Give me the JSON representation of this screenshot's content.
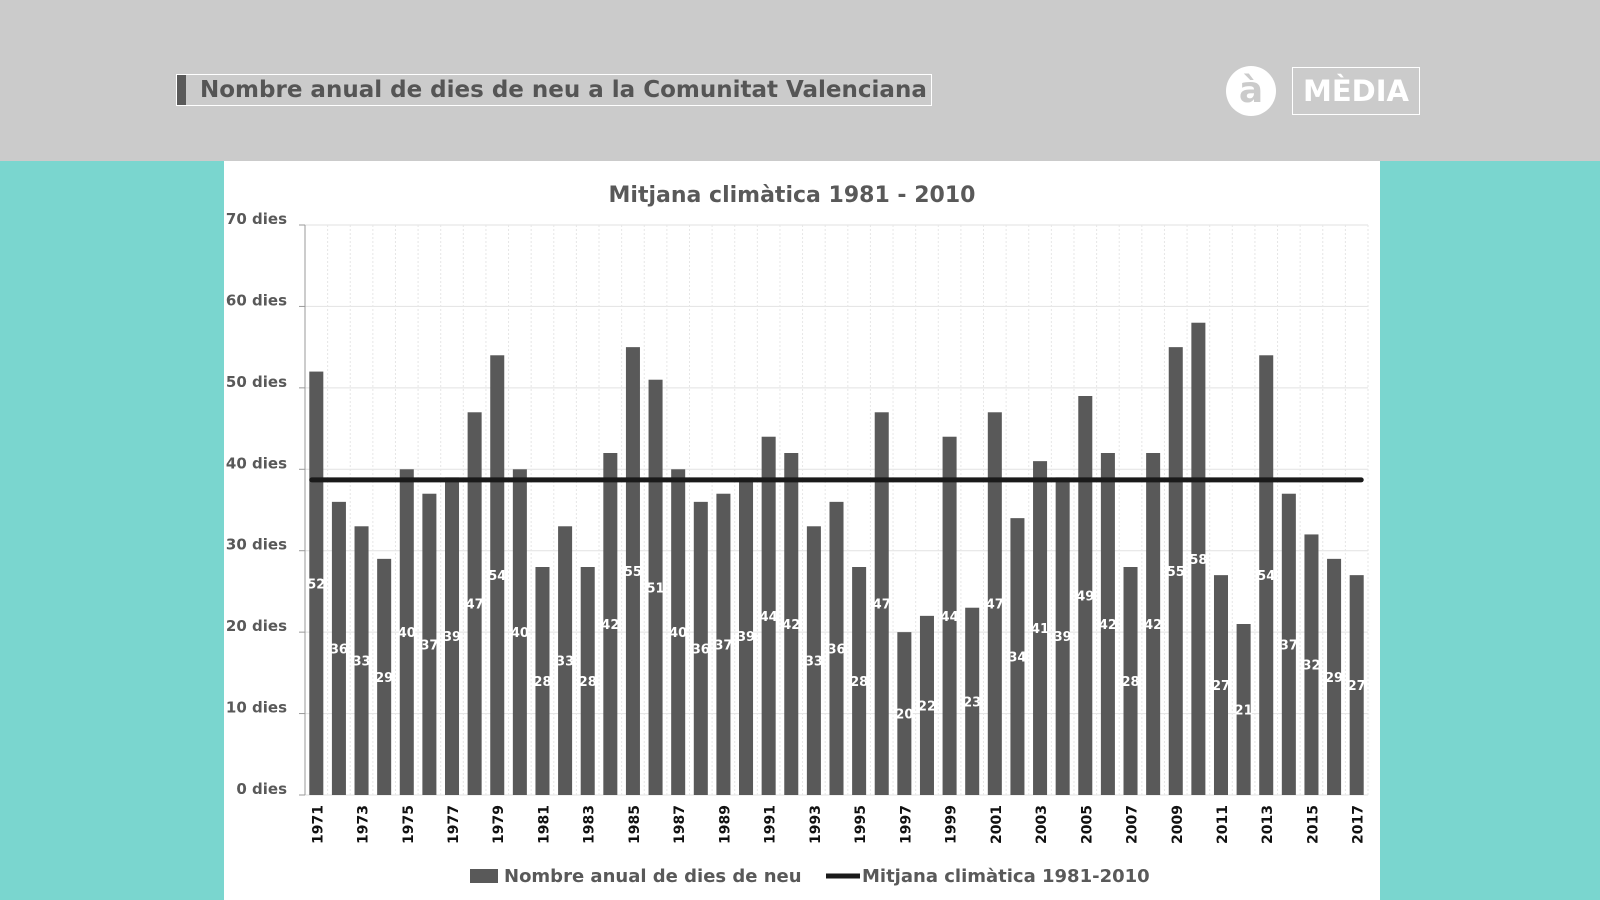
{
  "header": {
    "title": "Nombre anual de dies de neu a la Comunitat Valenciana",
    "logo_letter": "à",
    "logo_word": "MÈDIA"
  },
  "colors": {
    "bar": "#595959",
    "line": "#1a1a1a",
    "background": "#7ad6cf",
    "header": "#cbcbcb"
  },
  "chart_data": {
    "type": "bar",
    "title": "Mitjana climàtica 1981 - 2010",
    "xlabel": "",
    "ylabel": "",
    "ylim": [
      0,
      70
    ],
    "yticks": [
      0,
      10,
      20,
      30,
      40,
      50,
      60,
      70
    ],
    "ytick_labels": [
      "0 dies",
      "10 dies",
      "20 dies",
      "30 dies",
      "40 dies",
      "50 dies",
      "60 dies",
      "70 dies"
    ],
    "categories": [
      "1971",
      "1972",
      "1973",
      "1974",
      "1975",
      "1976",
      "1977",
      "1978",
      "1979",
      "1980",
      "1981",
      "1982",
      "1983",
      "1984",
      "1985",
      "1986",
      "1987",
      "1988",
      "1989",
      "1990",
      "1991",
      "1992",
      "1993",
      "1994",
      "1995",
      "1996",
      "1997",
      "1998",
      "1999",
      "2000",
      "2001",
      "2002",
      "2003",
      "2004",
      "2005",
      "2006",
      "2007",
      "2008",
      "2009",
      "2010",
      "2011",
      "2012",
      "2013",
      "2014",
      "2015",
      "2016",
      "2017"
    ],
    "series": [
      {
        "name": "Nombre anual de dies de neu",
        "type": "bar",
        "values": [
          52,
          36,
          33,
          29,
          40,
          37,
          39,
          47,
          54,
          40,
          28,
          33,
          28,
          42,
          55,
          51,
          40,
          36,
          37,
          39,
          44,
          42,
          33,
          36,
          28,
          47,
          20,
          22,
          44,
          23,
          47,
          34,
          41,
          39,
          49,
          42,
          28,
          42,
          55,
          58,
          27,
          21,
          54,
          37,
          32,
          29,
          27
        ]
      },
      {
        "name": "Mitjana climàtica 1981-2010",
        "type": "line",
        "value": 38.7
      }
    ],
    "grid": true,
    "legend_position": "bottom"
  }
}
